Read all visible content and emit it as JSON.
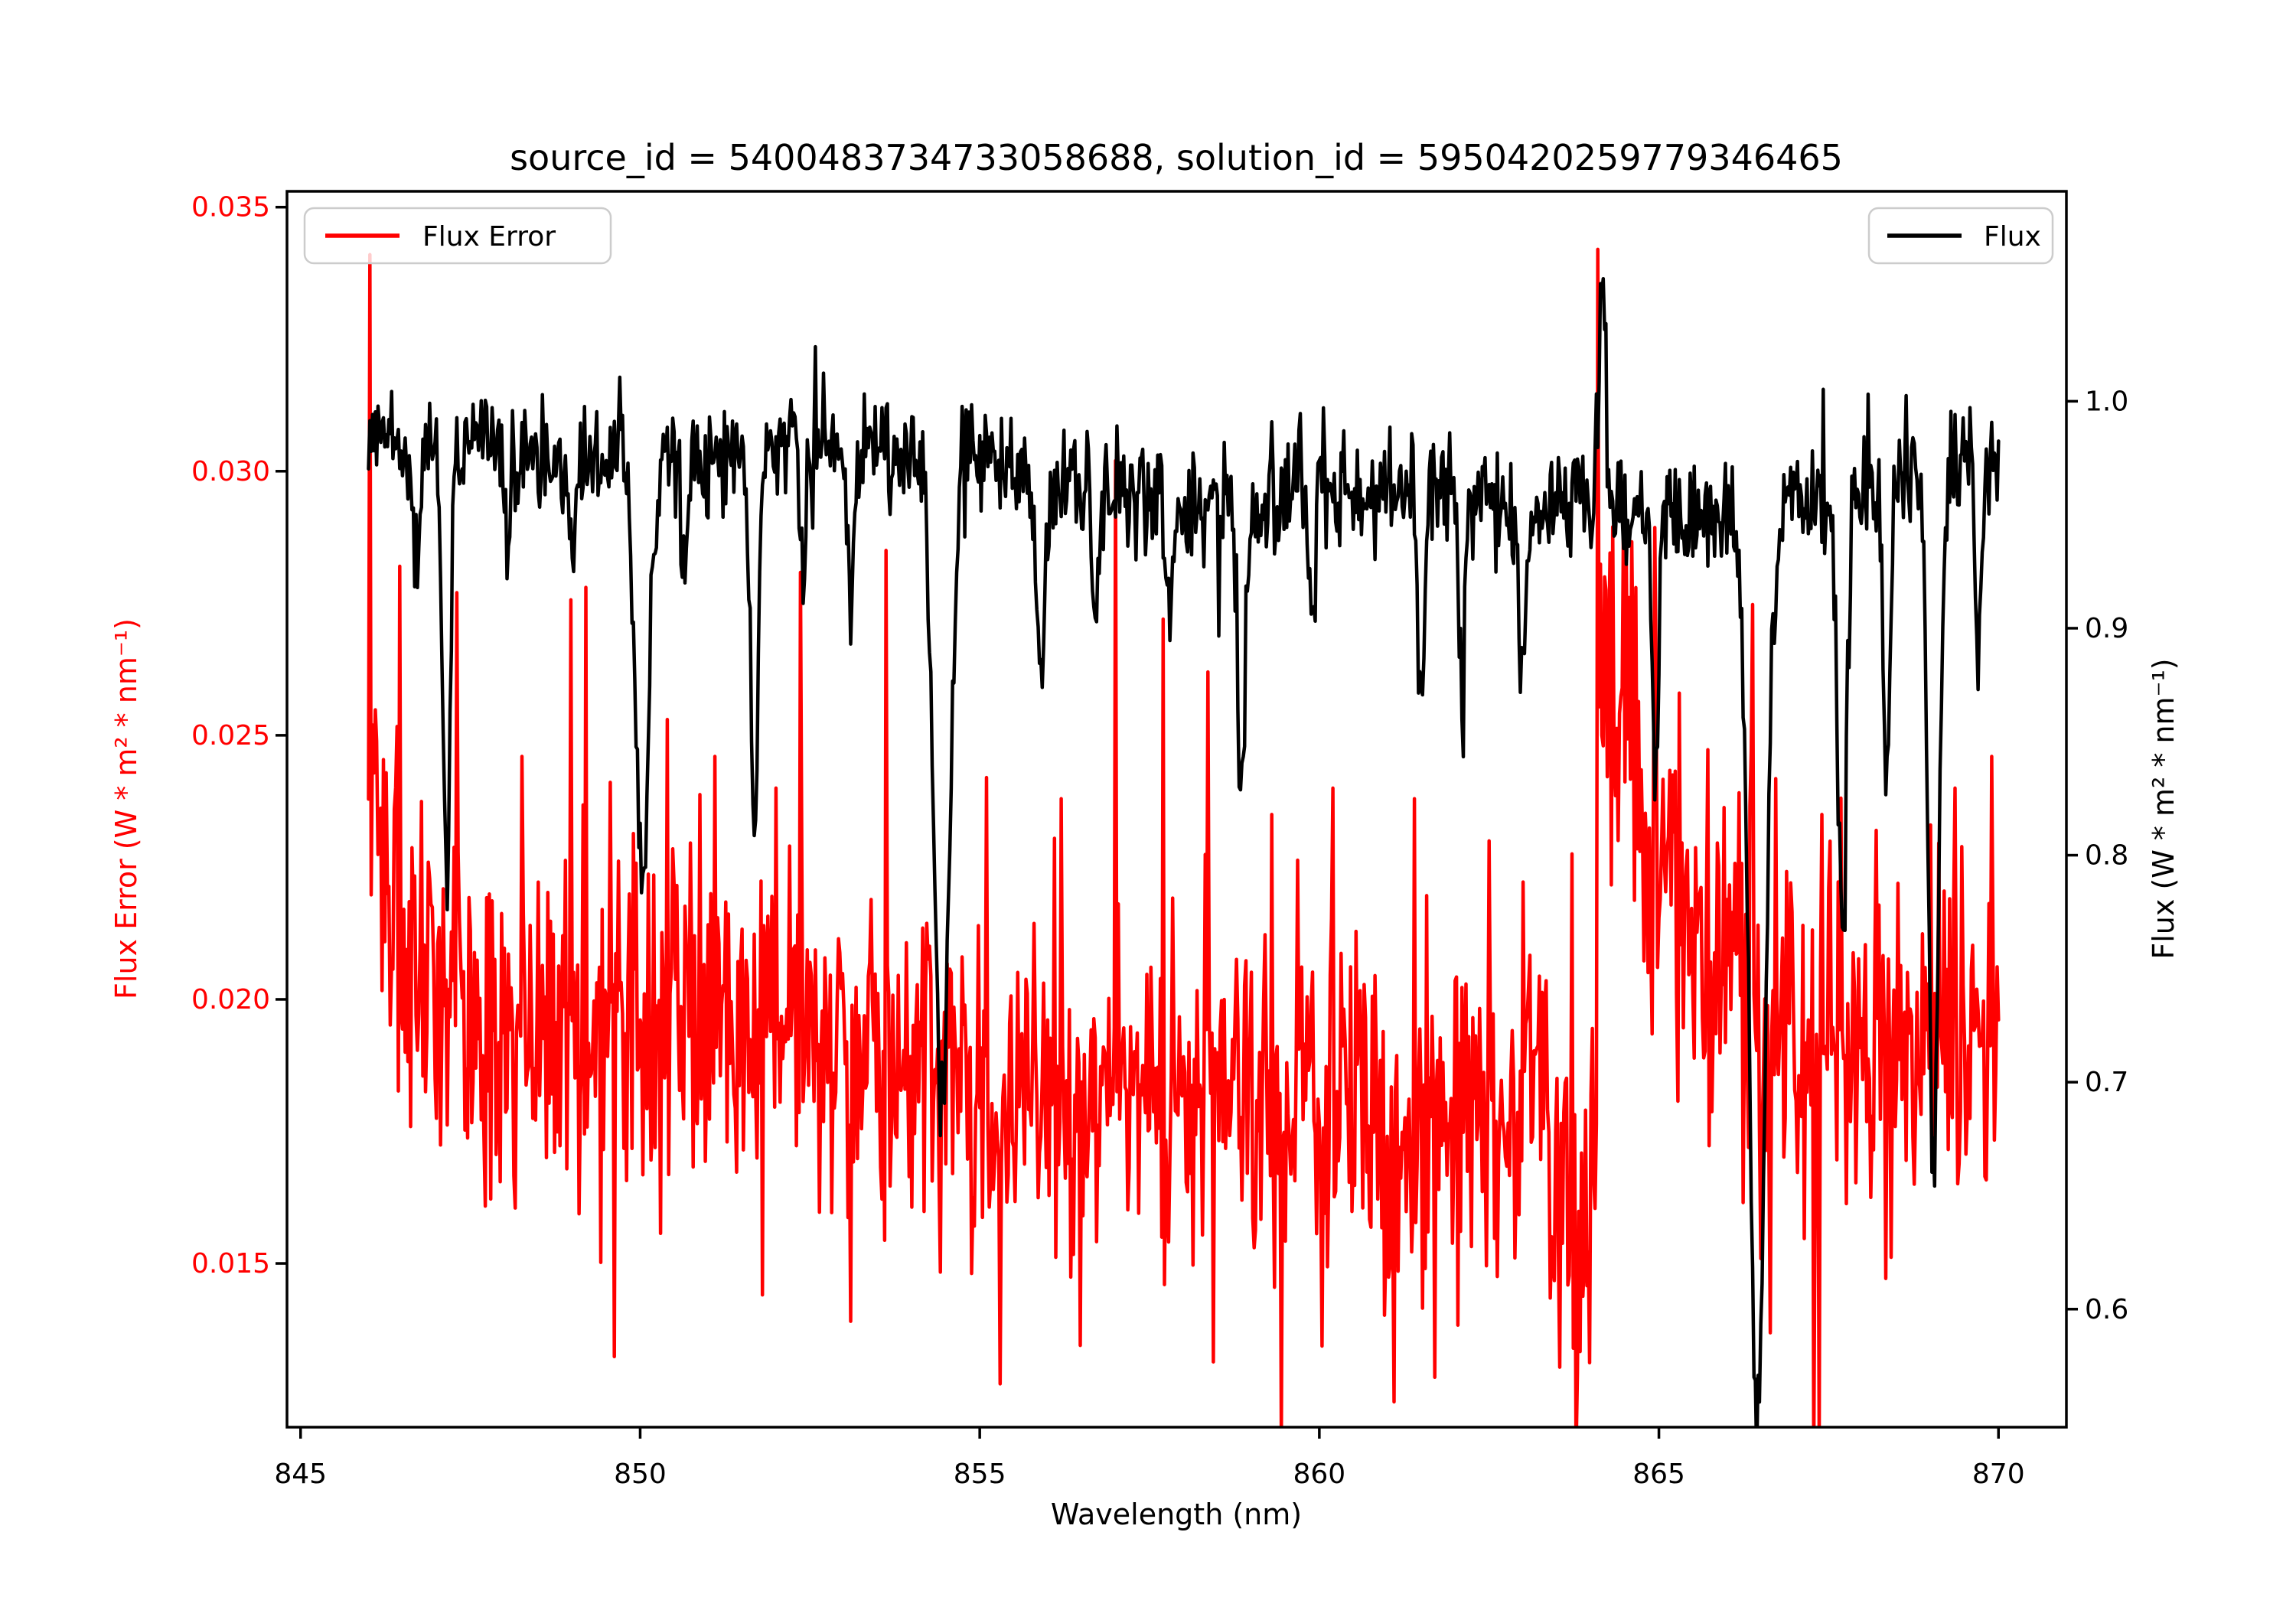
{
  "figure": {
    "background": "#ffffff",
    "title": "source_id = 5400483734733058688, solution_id = 5950420259779346465"
  },
  "chart_data": {
    "type": "line",
    "title": "source_id = 5400483734733058688, solution_id = 5950420259779346465",
    "xlabel": "Wavelength (nm)",
    "x_axis": {
      "tick_labels": [
        "845",
        "850",
        "855",
        "860",
        "865",
        "870"
      ],
      "tick_values": [
        845,
        850,
        855,
        860,
        865,
        870
      ],
      "lim": [
        844.8,
        871.0
      ]
    },
    "left_axis": {
      "label": "Flux Error (W * m² * nm⁻¹)",
      "color": "#ff0000",
      "tick_labels": [
        "0.015",
        "0.020",
        "0.025",
        "0.030",
        "0.035"
      ],
      "tick_values": [
        0.015,
        0.02,
        0.025,
        0.03,
        0.035
      ],
      "lim": [
        0.0119,
        0.0353
      ]
    },
    "right_axis": {
      "label": "Flux (W * m² * nm⁻¹)",
      "color": "#000000",
      "tick_labels": [
        "0.6",
        "0.7",
        "0.8",
        "0.9",
        "1.0"
      ],
      "tick_values": [
        0.6,
        0.7,
        0.8,
        0.9,
        1.0
      ],
      "lim": [
        0.548,
        1.0925
      ]
    },
    "legend": [
      {
        "label": "Flux Error",
        "color": "#ff0000",
        "loc": "upper left"
      },
      {
        "label": "Flux",
        "color": "#000000",
        "loc": "upper right"
      }
    ],
    "grid": false,
    "series": [
      {
        "name": "Flux Error",
        "axis": "left",
        "color": "#ff0000",
        "x_start": 846.0,
        "x_end": 870.0,
        "step": 0.02,
        "seed": 7,
        "base": 0.0188,
        "noise_std": 0.0016,
        "noise_spike_prob": 0.12,
        "noise_spike_mult": 1.9,
        "waves": [
          {
            "amp": 0.0007,
            "period": 21,
            "phase": 0.8
          },
          {
            "amp": 0.0005,
            "period": 6.5,
            "phase": 2.4
          }
        ],
        "decays": [
          {
            "start": 846.0,
            "amp": 0.004,
            "tau": 0.8
          },
          {
            "start": 864.12,
            "amp": 0.0095,
            "tau": 0.9
          }
        ],
        "dips": [
          [
            863.8,
            0.0035,
            0.3
          ]
        ],
        "bumps": [],
        "point_spikes": [
          [
            846.03,
            0.0341
          ],
          [
            846.45,
            0.0282
          ],
          [
            847.3,
            0.0277
          ],
          [
            848.25,
            0.0246
          ],
          [
            849.2,
            0.0278
          ],
          [
            850.4,
            0.0253
          ],
          [
            851.1,
            0.0246
          ],
          [
            852.0,
            0.024
          ],
          [
            853.62,
            0.0285
          ],
          [
            855.1,
            0.0242
          ],
          [
            856.2,
            0.0238
          ],
          [
            857.0,
            0.0302
          ],
          [
            857.7,
            0.0272
          ],
          [
            858.35,
            0.0262
          ],
          [
            859.3,
            0.0235
          ],
          [
            860.2,
            0.024
          ],
          [
            861.4,
            0.0238
          ],
          [
            862.5,
            0.023
          ],
          [
            864.1,
            0.0342
          ],
          [
            865.3,
            0.0258
          ],
          [
            866.35,
            0.0247
          ],
          [
            867.4,
            0.0235
          ],
          [
            868.2,
            0.0232
          ],
          [
            869.35,
            0.024
          ],
          [
            869.9,
            0.0246
          ]
        ]
      },
      {
        "name": "Flux",
        "axis": "right",
        "color": "#000000",
        "x_start": 846.0,
        "x_end": 870.0,
        "step": 0.02,
        "seed": 42,
        "base": 0.972,
        "noise_std": 0.0125,
        "noise_spike_prob": 0.05,
        "noise_spike_mult": 2.0,
        "waves": [
          {
            "amp": 0.008,
            "period": 24,
            "phase": 0.3
          },
          {
            "amp": 0.006,
            "period": 8.2,
            "phase": 2.0
          },
          {
            "amp": 0.01,
            "period": 50,
            "phase": 2.6
          }
        ],
        "decays": [],
        "dips": [
          [
            846.7,
            0.055,
            0.05
          ],
          [
            847.15,
            0.185,
            0.055
          ],
          [
            848.05,
            0.05,
            0.04
          ],
          [
            849.0,
            0.05,
            0.04
          ],
          [
            850.03,
            0.175,
            0.1
          ],
          [
            850.65,
            0.05,
            0.04
          ],
          [
            851.68,
            0.165,
            0.055
          ],
          [
            852.4,
            0.055,
            0.04
          ],
          [
            853.1,
            0.075,
            0.05
          ],
          [
            854.45,
            0.285,
            0.115
          ],
          [
            855.9,
            0.075,
            0.05
          ],
          [
            856.7,
            0.055,
            0.04
          ],
          [
            857.8,
            0.055,
            0.04
          ],
          [
            858.85,
            0.125,
            0.055
          ],
          [
            859.9,
            0.065,
            0.04
          ],
          [
            861.5,
            0.1,
            0.05
          ],
          [
            862.1,
            0.085,
            0.045
          ],
          [
            863.0,
            0.075,
            0.045
          ],
          [
            864.95,
            0.105,
            0.05
          ],
          [
            866.45,
            0.4,
            0.115
          ],
          [
            867.7,
            0.195,
            0.065
          ],
          [
            868.35,
            0.125,
            0.05
          ],
          [
            869.05,
            0.305,
            0.075
          ],
          [
            869.7,
            0.085,
            0.04
          ]
        ],
        "bumps": [
          [
            864.17,
            0.105,
            0.05
          ]
        ],
        "point_spikes": []
      }
    ]
  }
}
